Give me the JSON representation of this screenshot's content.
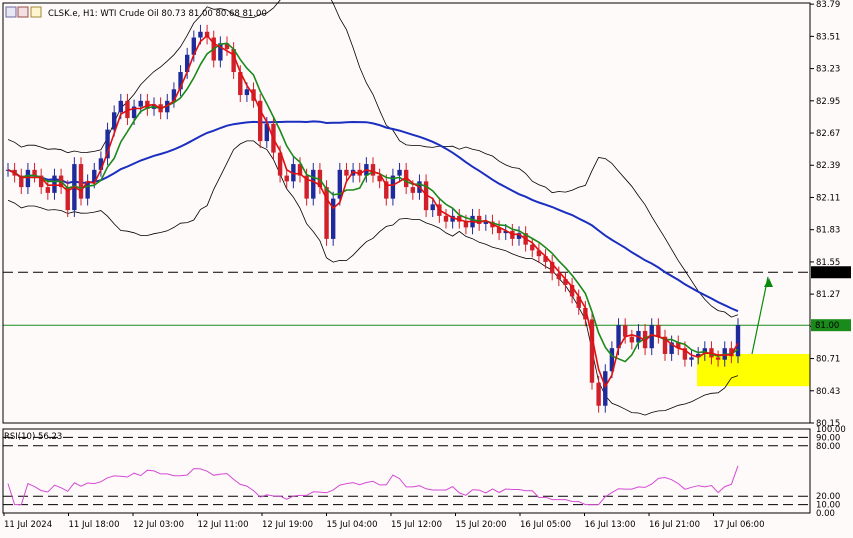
{
  "header": {
    "symbol_line": "CLSK.e, H1:  WTI Crude Oil  80.73 81.00 80.68 81.00",
    "rsi_label": "RSI(10) 56.23"
  },
  "colors": {
    "background": "#fffafa",
    "bull_candle": "#1f2b9a",
    "bear_candle": "#d0202a",
    "ma_fast": "#e01010",
    "ma_mid": "#1a8a1a",
    "ma_slow": "#1a2fc0",
    "bands": "#000000",
    "rsi": "#d44ad4",
    "arrow_up": "#3a4a8a",
    "arrow_down": "#e04ae0",
    "zone": "#ffff00",
    "signal_arrow": "#0a8a0a",
    "price_label_bg": "#000000"
  },
  "chart_data": [
    {
      "type": "candlestick",
      "title": "CLSK.e, H1: WTI Crude Oil",
      "ylim": [
        80.15,
        83.8
      ],
      "y_ticks": [
        "83.79",
        "83.51",
        "83.23",
        "82.95",
        "82.67",
        "82.39",
        "82.11",
        "81.83",
        "81.55",
        "81.27",
        "80.99",
        "80.71",
        "80.43",
        "80.15"
      ],
      "x_ticks": [
        "11 Jul 2024",
        "11 Jul 18:00",
        "12 Jul 03:00",
        "12 Jul 11:00",
        "12 Jul 19:00",
        "15 Jul 04:00",
        "15 Jul 12:00",
        "15 Jul 20:00",
        "16 Jul 05:00",
        "16 Jul 13:00",
        "16 Jul 21:00",
        "17 Jul 06:00"
      ],
      "horizontal_lines": [
        {
          "value": 81.46,
          "label": "81.46",
          "style": "dashed"
        },
        {
          "value": 81.0,
          "label": "81.00",
          "style": "solid"
        }
      ],
      "highlight_zone": {
        "from": 80.47,
        "to": 80.75
      },
      "close_series": [
        82.35,
        82.3,
        82.2,
        82.35,
        82.3,
        82.2,
        82.15,
        82.3,
        82.2,
        82.0,
        82.4,
        82.1,
        82.25,
        82.35,
        82.45,
        82.7,
        82.85,
        82.95,
        82.8,
        82.9,
        82.95,
        82.88,
        82.92,
        82.85,
        82.95,
        83.05,
        83.2,
        83.35,
        83.5,
        83.55,
        83.5,
        83.3,
        83.45,
        83.4,
        83.2,
        83.0,
        83.05,
        82.95,
        82.6,
        82.75,
        82.5,
        82.3,
        82.25,
        82.4,
        82.3,
        82.1,
        82.35,
        82.2,
        81.75,
        82.1,
        82.35,
        82.3,
        82.35,
        82.3,
        82.4,
        82.3,
        82.25,
        82.1,
        82.3,
        82.35,
        82.2,
        82.15,
        82.25,
        82.0,
        82.05,
        81.95,
        81.9,
        81.95,
        81.9,
        81.85,
        81.95,
        81.88,
        81.9,
        81.85,
        81.8,
        81.82,
        81.75,
        81.8,
        81.7,
        81.65,
        81.6,
        81.55,
        81.45,
        81.4,
        81.35,
        81.25,
        81.15,
        81.05,
        80.5,
        80.3,
        80.6,
        80.8,
        81.0,
        80.9,
        80.85,
        80.95,
        80.8,
        81.0,
        80.9,
        80.75,
        80.85,
        80.8,
        80.7,
        80.72,
        80.75,
        80.8,
        80.72,
        80.7,
        80.8,
        80.73,
        81.0
      ],
      "series": [
        {
          "name": "MA fast",
          "color": "#e01010"
        },
        {
          "name": "MA mid",
          "color": "#1a8a1a"
        },
        {
          "name": "MA slow",
          "color": "#1a2fc0"
        },
        {
          "name": "Bollinger",
          "color": "#000000"
        }
      ]
    },
    {
      "type": "line",
      "title": "RSI(10) 56.23",
      "ylim": [
        0,
        100
      ],
      "y_ticks": [
        "100.00",
        "90.00",
        "80.00",
        "20.00",
        "10.00",
        "0.00"
      ],
      "levels": [
        90,
        80,
        20,
        10
      ],
      "value": 56.23
    }
  ]
}
